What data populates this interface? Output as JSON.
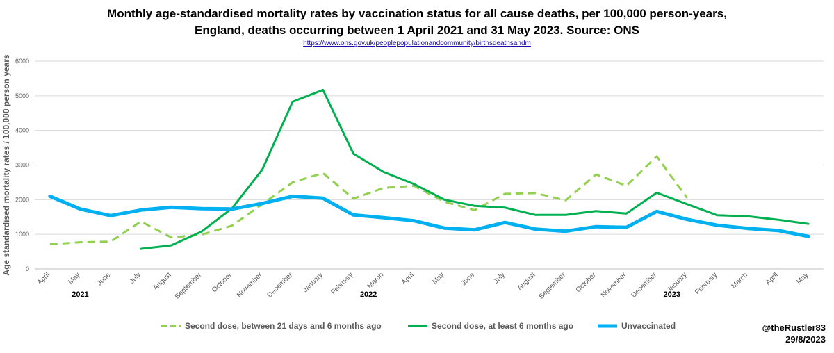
{
  "title_line1": "Monthly age-standardised mortality rates by vaccination status for all cause deaths, per 100,000 person-years,",
  "title_line2": "England, deaths occurring between 1 April 2021 and 31 May 2023. Source: ONS",
  "source_link": "https://www.ons.gov.uk/peoplepopulationandcommunity/birthsdeathsandm",
  "credit_handle": "@theRustler83",
  "credit_date": "29/8/2023",
  "chart_data": {
    "type": "line",
    "title": "Monthly age-standardised mortality rates by vaccination status for all cause deaths, per 100,000 person-years, England, deaths occurring between 1 April 2021 and 31 May 2023. Source: ONS",
    "xlabel": "",
    "ylabel": "Age standardised mortality rates / 100,000 person years",
    "ylim": [
      0,
      6000
    ],
    "yticks": [
      0,
      1000,
      2000,
      3000,
      4000,
      5000,
      6000
    ],
    "grid": true,
    "legend_position": "bottom",
    "categories": [
      "April",
      "May",
      "June",
      "July",
      "August",
      "September",
      "October",
      "November",
      "December",
      "January",
      "February",
      "March",
      "April",
      "May",
      "June",
      "July",
      "August",
      "September",
      "October",
      "November",
      "December",
      "January",
      "February",
      "March",
      "April",
      "May"
    ],
    "year_labels": [
      {
        "label": "2021",
        "index": 1
      },
      {
        "label": "2022",
        "index": 10.5
      },
      {
        "label": "2023",
        "index": 20.5
      }
    ],
    "series": [
      {
        "name": "Second dose, between 21 days and 6 months ago",
        "color": "#92d050",
        "dashed": true,
        "width": 3,
        "values": [
          710,
          770,
          790,
          1370,
          910,
          990,
          1250,
          1870,
          2500,
          2770,
          2030,
          2340,
          2400,
          1940,
          1700,
          2170,
          2190,
          1980,
          2730,
          2400,
          3250,
          2050,
          null,
          null,
          null,
          null
        ]
      },
      {
        "name": "Second dose, at least 6 months ago",
        "color": "#00b050",
        "dashed": false,
        "width": 3,
        "values": [
          null,
          null,
          null,
          580,
          680,
          1080,
          1750,
          2870,
          4830,
          5170,
          3330,
          2800,
          2450,
          2000,
          1820,
          1770,
          1560,
          1560,
          1670,
          1600,
          2200,
          1870,
          1550,
          1520,
          1420,
          1300
        ]
      },
      {
        "name": "Unvaccinated",
        "color": "#00b0f0",
        "dashed": false,
        "width": 5,
        "values": [
          2100,
          1730,
          1540,
          1700,
          1780,
          1740,
          1730,
          1890,
          2100,
          2040,
          1560,
          1480,
          1390,
          1180,
          1130,
          1340,
          1150,
          1090,
          1220,
          1200,
          1660,
          1430,
          1260,
          1170,
          1110,
          940
        ]
      }
    ]
  }
}
